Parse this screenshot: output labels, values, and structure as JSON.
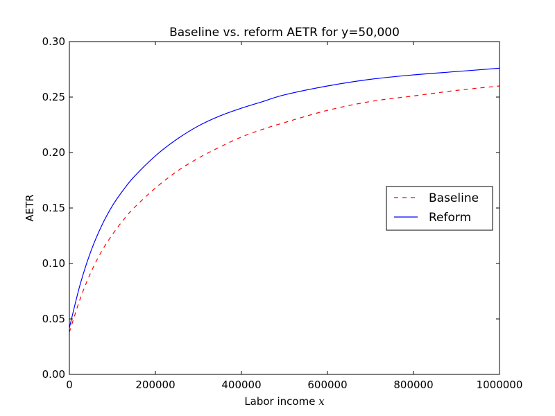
{
  "chart_data": {
    "type": "line",
    "title": "Baseline vs. reform AETR for y=50,000",
    "xlabel_text": "Labor income ",
    "xlabel_math": "x",
    "ylabel": "AETR",
    "xlim": [
      0,
      1000000
    ],
    "ylim": [
      0,
      0.3
    ],
    "xticks": [
      0,
      200000,
      400000,
      600000,
      800000,
      1000000
    ],
    "xtick_labels": [
      "0",
      "200000",
      "400000",
      "600000",
      "800000",
      "1000000"
    ],
    "yticks": [
      0,
      0.05,
      0.1,
      0.15,
      0.2,
      0.25,
      0.3
    ],
    "ytick_labels": [
      "0.00",
      "0.05",
      "0.10",
      "0.15",
      "0.20",
      "0.25",
      "0.30"
    ],
    "grid": false,
    "legend_position": "center-right",
    "series": [
      {
        "name": "Baseline",
        "color": "#ff0000",
        "style": "dashed",
        "x": [
          0,
          25000,
          50000,
          75000,
          100000,
          125000,
          150000,
          200000,
          250000,
          300000,
          350000,
          400000,
          450000,
          500000,
          600000,
          700000,
          800000,
          900000,
          1000000
        ],
        "y": [
          0.038,
          0.068,
          0.092,
          0.111,
          0.126,
          0.139,
          0.15,
          0.168,
          0.183,
          0.195,
          0.205,
          0.214,
          0.221,
          0.227,
          0.238,
          0.246,
          0.251,
          0.256,
          0.26
        ]
      },
      {
        "name": "Reform",
        "color": "#0000ff",
        "style": "solid",
        "x": [
          0,
          25000,
          50000,
          75000,
          100000,
          125000,
          150000,
          200000,
          250000,
          300000,
          350000,
          400000,
          450000,
          500000,
          600000,
          700000,
          800000,
          900000,
          1000000
        ],
        "y": [
          0.042,
          0.081,
          0.111,
          0.134,
          0.152,
          0.166,
          0.178,
          0.197,
          0.212,
          0.224,
          0.233,
          0.24,
          0.246,
          0.252,
          0.26,
          0.266,
          0.27,
          0.273,
          0.276
        ]
      }
    ]
  }
}
